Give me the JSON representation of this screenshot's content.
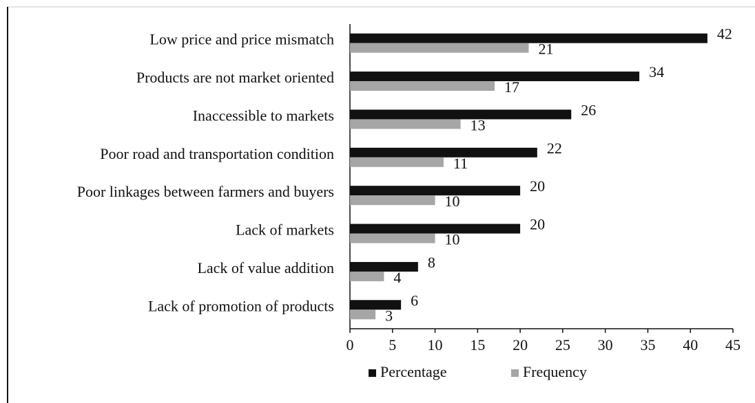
{
  "chart_data": {
    "type": "bar",
    "orientation": "horizontal",
    "categories": [
      "Low price and price mismatch",
      "Products are not market oriented",
      "Inaccessible to markets",
      "Poor road and transportation condition",
      "Poor linkages between farmers and buyers",
      "Lack of markets",
      "Lack of value addition",
      "Lack of promotion of products"
    ],
    "series": [
      {
        "name": "Percentage",
        "color": "#111111",
        "values": [
          42,
          34,
          26,
          22,
          20,
          20,
          8,
          6
        ]
      },
      {
        "name": "Frequency",
        "color": "#a6a6a6",
        "values": [
          21,
          17,
          13,
          11,
          10,
          10,
          4,
          3
        ]
      }
    ],
    "xlim": [
      0,
      45
    ],
    "xticks": [
      0,
      5,
      10,
      15,
      20,
      25,
      30,
      35,
      40,
      45
    ],
    "legend": "bottom"
  }
}
